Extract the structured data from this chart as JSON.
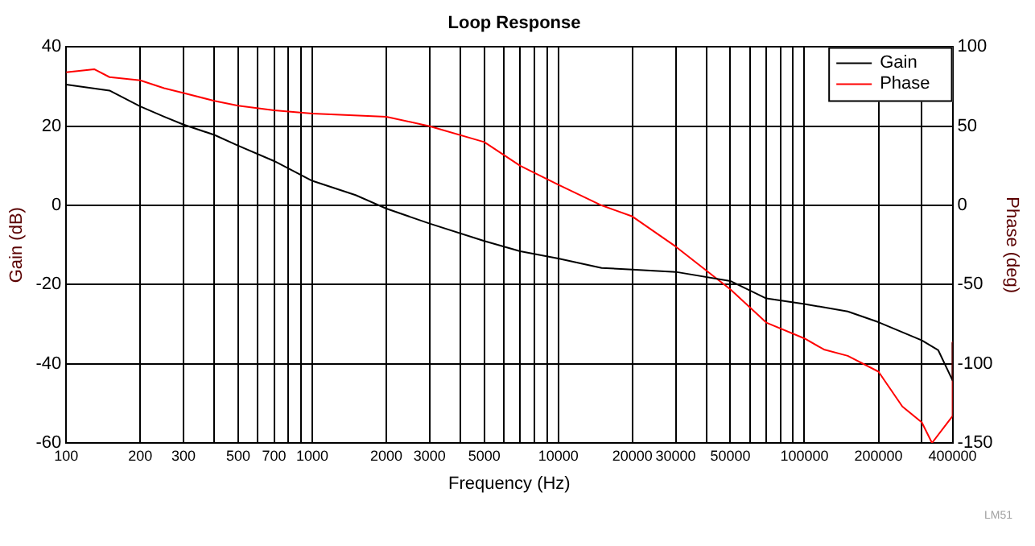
{
  "chart_data": {
    "type": "line",
    "title": "Loop Response",
    "xlabel": "Frequency (Hz)",
    "ylabel": "Gain (dB)",
    "y2label": "Phase (deg)",
    "log": "x",
    "grid": true,
    "legend": "top right",
    "marker": "none",
    "line_style": "solid",
    "xlim": [
      100,
      400000
    ],
    "xticks": [
      100,
      200,
      300,
      {
        "value": 400,
        "label": null
      },
      500,
      {
        "value": 600,
        "label": null
      },
      700,
      {
        "value": 800,
        "label": null
      },
      {
        "value": 900,
        "label": null
      },
      1000,
      2000,
      3000,
      {
        "value": 4000,
        "label": null
      },
      5000,
      {
        "value": 6000,
        "label": null
      },
      {
        "value": 7000,
        "label": null
      },
      {
        "value": 8000,
        "label": null
      },
      {
        "value": 9000,
        "label": null
      },
      10000,
      20000,
      30000,
      {
        "value": 40000,
        "label": null
      },
      50000,
      {
        "value": 60000,
        "label": null
      },
      {
        "value": 70000,
        "label": null
      },
      {
        "value": 80000,
        "label": null
      },
      {
        "value": 90000,
        "label": null
      },
      100000,
      200000,
      {
        "value": 300000,
        "label": null
      },
      400000
    ],
    "ylim": [
      -60,
      40
    ],
    "yticks": [
      -60,
      -40,
      -20,
      0,
      20,
      40
    ],
    "y2lim": [
      -150,
      100
    ],
    "y2ticks": [
      -150,
      -100,
      -50,
      0,
      50,
      100
    ],
    "series": [
      {
        "name": "Gain",
        "color": "#000000",
        "x": [
          100,
          150,
          200,
          250,
          300,
          400,
          500,
          700,
          1000,
          1500,
          2000,
          3000,
          5000,
          7000,
          10000,
          15000,
          20000,
          30000,
          50000,
          70000,
          100000,
          150000,
          200000,
          300000,
          350000,
          400000,
          400000
        ],
        "values": [
          30.5,
          29,
          25,
          22.4,
          20.4,
          17.8,
          15.1,
          11.2,
          6.2,
          2.6,
          -0.8,
          -4.6,
          -9,
          -11.6,
          -13.4,
          -15.8,
          -16.2,
          -16.8,
          -19.1,
          -23.5,
          -24.9,
          -26.8,
          -29.5,
          -34.1,
          -36.6,
          -44.2,
          -34.6
        ]
      },
      {
        "name": "Phase",
        "color": "#ff0000",
        "axis": "y2",
        "x": [
          100,
          130,
          150,
          200,
          250,
          300,
          400,
          500,
          700,
          1000,
          2000,
          3000,
          5000,
          7000,
          10000,
          15000,
          20000,
          30000,
          50000,
          70000,
          100000,
          120000,
          150000,
          200000,
          250000,
          300000,
          330000,
          400000,
          400000
        ],
        "values": [
          84,
          86,
          81,
          79,
          74,
          71,
          66,
          63,
          60,
          58,
          56,
          50,
          40,
          25,
          13,
          0,
          -7,
          -26,
          -53,
          -74,
          -84,
          -91,
          -95,
          -105,
          -127,
          -137,
          -150,
          -133,
          -86
        ]
      }
    ],
    "annotations": [
      "LM51"
    ]
  }
}
